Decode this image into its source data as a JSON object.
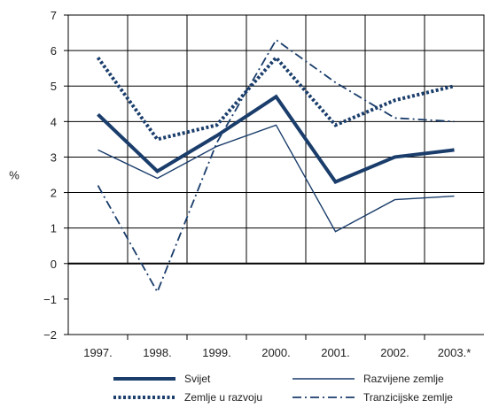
{
  "chart_data": {
    "type": "line",
    "title": "",
    "xlabel": "",
    "ylabel": "%",
    "ylim": [
      -2,
      7
    ],
    "yticks": [
      "−2",
      "−1",
      "0",
      "1",
      "2",
      "3",
      "4",
      "5",
      "6",
      "7"
    ],
    "categories": [
      "1997.",
      "1998.",
      "1999.",
      "2000.",
      "2001.",
      "2002.",
      "2003.*"
    ],
    "grid": true,
    "legend_position": "bottom",
    "series": [
      {
        "name": "Svijet",
        "values": [
          4.2,
          2.6,
          3.6,
          4.7,
          2.3,
          3.0,
          3.2
        ],
        "style": "thick-solid",
        "color": "#1a3d6b"
      },
      {
        "name": "Razvijene zemlje",
        "values": [
          3.2,
          2.4,
          3.3,
          3.9,
          0.9,
          1.8,
          1.9
        ],
        "style": "thin-solid",
        "color": "#1a3d6b"
      },
      {
        "name": "Zemlje u razvoju",
        "values": [
          5.8,
          3.5,
          3.9,
          5.8,
          3.9,
          4.6,
          5.0
        ],
        "style": "dotted",
        "color": "#1a3d6b"
      },
      {
        "name": "Tranzicijske zemlje",
        "values": [
          2.2,
          -0.8,
          3.4,
          6.3,
          5.1,
          4.1,
          4.0
        ],
        "style": "dash-dot",
        "color": "#1a3d6b"
      }
    ]
  }
}
